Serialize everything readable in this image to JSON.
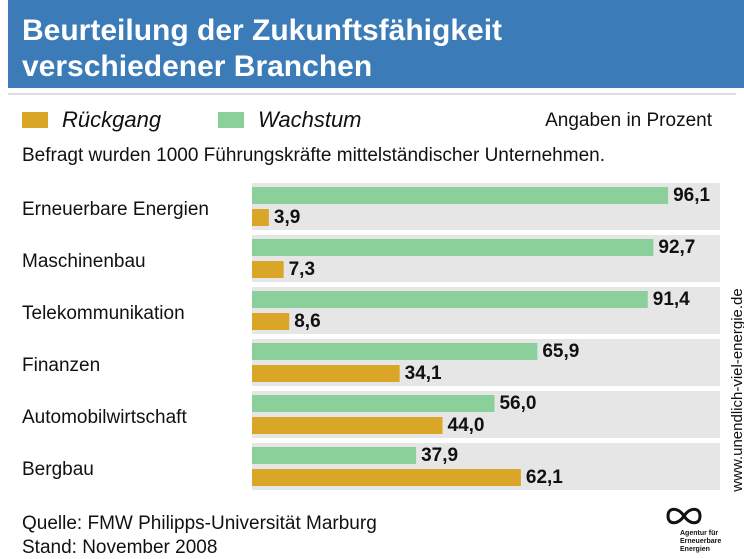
{
  "chart_data": {
    "type": "hbar",
    "title": [
      "Beurteilung der Zukunftsfähigkeit",
      "verschiedener Branchen"
    ],
    "unit_note": "Angaben in Prozent",
    "subtitle": "Befragt wurden 1000 Führungskräfte mittelständischer Unternehmen.",
    "categories": [
      "Erneuerbare Energien",
      "Maschinenbau",
      "Telekommunikation",
      "Finanzen",
      "Automobilwirtschaft",
      "Bergbau"
    ],
    "series": [
      {
        "name": "Rückgang",
        "color": "#d9a628",
        "values": [
          3.9,
          7.3,
          8.6,
          34.1,
          44.0,
          62.1
        ],
        "value_labels": [
          "3,9",
          "7,3",
          "8,6",
          "34,1",
          "44,0",
          "62,1"
        ]
      },
      {
        "name": "Wachstum",
        "color": "#8bd09a",
        "values": [
          96.1,
          92.7,
          91.4,
          65.9,
          56.0,
          37.9
        ],
        "value_labels": [
          "96,1",
          "92,7",
          "91,4",
          "65,9",
          "56,0",
          "37,9"
        ]
      }
    ],
    "xlim": [
      0,
      100
    ],
    "source": [
      "Quelle: FMW Philipps-Universität Marburg",
      "Stand: November 2008"
    ],
    "watermark": "www.unendlich-viel-energie.de",
    "logo_text": [
      "Agentur für",
      "Erneuerbare",
      "Energien"
    ]
  }
}
